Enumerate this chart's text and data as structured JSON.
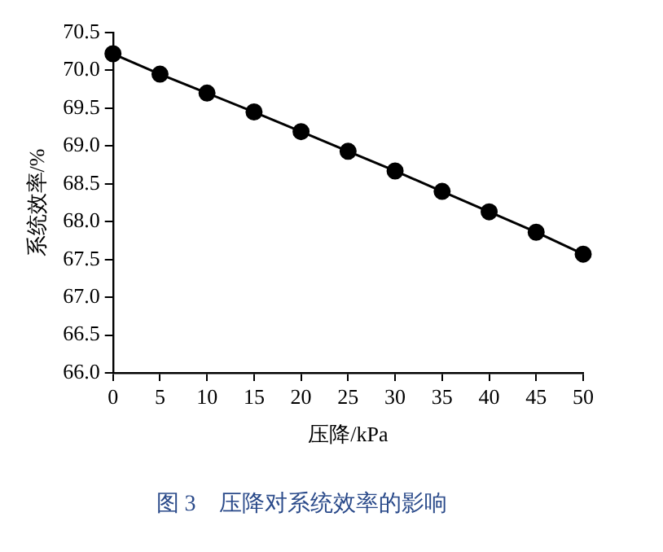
{
  "chart_data": {
    "type": "line",
    "title": "图 3　压降对系统效率的影响",
    "xlabel": "压降/kPa",
    "ylabel": "系统效率/%",
    "x": [
      0,
      5,
      10,
      15,
      20,
      25,
      30,
      35,
      40,
      45,
      50
    ],
    "series": [
      {
        "color": "#000000",
        "values": [
          70.22,
          69.95,
          69.7,
          69.45,
          69.19,
          68.93,
          68.67,
          68.4,
          68.13,
          67.86,
          67.57
        ]
      }
    ],
    "xlim": [
      0,
      50
    ],
    "xticks": [
      0,
      5,
      10,
      15,
      20,
      25,
      30,
      35,
      40,
      45,
      50
    ],
    "ylim": [
      66,
      70.5
    ],
    "yticks": [
      {
        "value": 66,
        "label": "66.0"
      },
      {
        "value": 66.5,
        "label": "66.5"
      },
      {
        "value": 67,
        "label": "67.0"
      },
      {
        "value": 67.5,
        "label": "67.5"
      },
      {
        "value": 68,
        "label": "68.0"
      },
      {
        "value": 68.5,
        "label": "68.5"
      },
      {
        "value": 69,
        "label": "69.0"
      },
      {
        "value": 69.5,
        "label": "69.5"
      },
      {
        "value": 70,
        "label": "70.0"
      },
      {
        "value": 70.5,
        "label": "70.5"
      }
    ],
    "grid": false,
    "legend": false,
    "marker": "circle",
    "line_style": "solid"
  }
}
